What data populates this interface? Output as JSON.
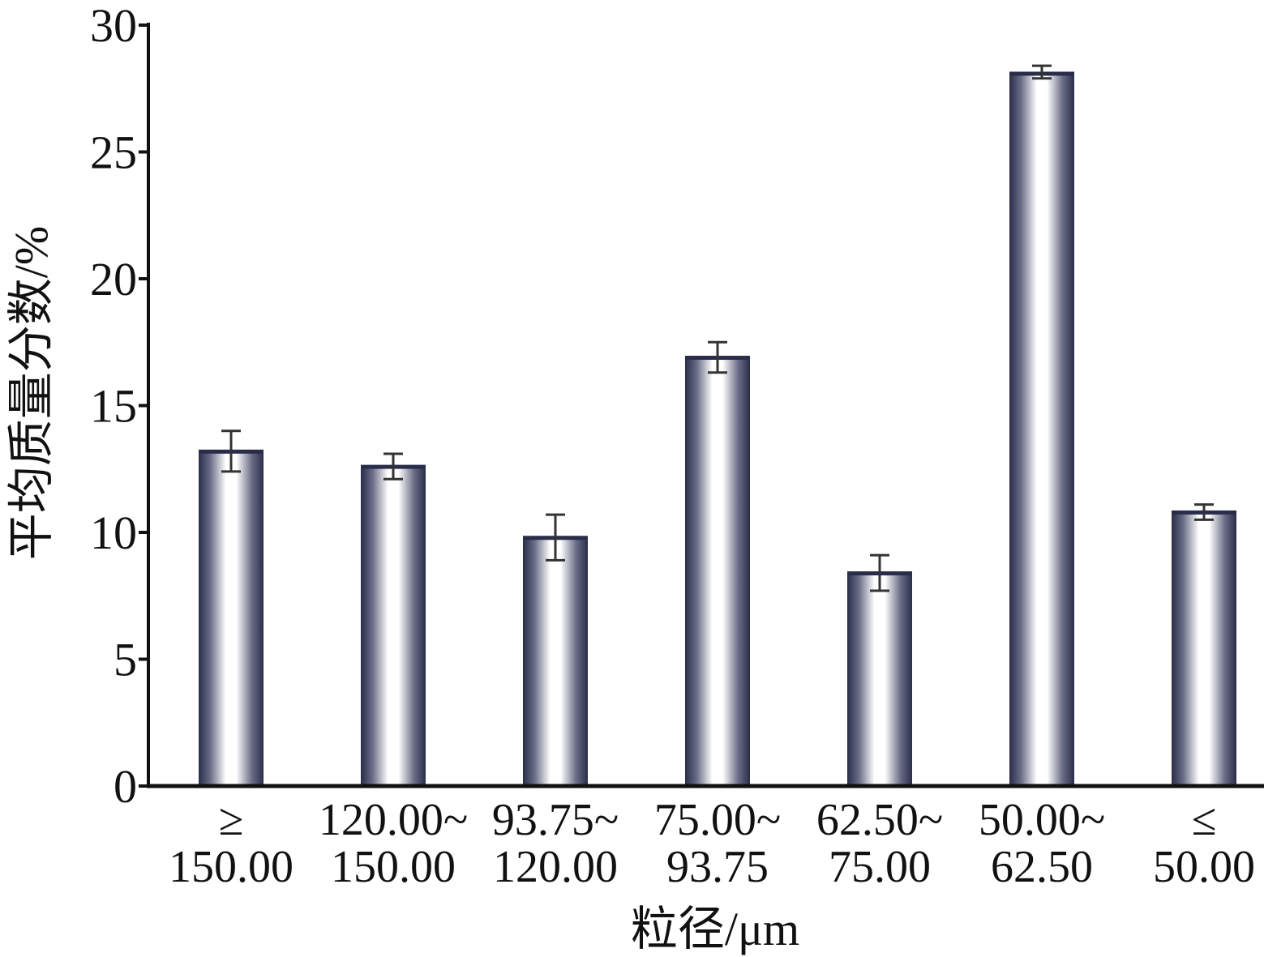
{
  "chart_data": {
    "type": "bar",
    "title": "",
    "xlabel": "粒径/μm",
    "ylabel": "平均质量分数/%",
    "ylim": [
      0,
      30
    ],
    "yticks": [
      0,
      5,
      10,
      15,
      20,
      25,
      30
    ],
    "grid": false,
    "categories": [
      [
        "≥",
        "150.00"
      ],
      [
        "120.00~",
        "150.00"
      ],
      [
        "93.75~",
        "120.00"
      ],
      [
        "75.00~",
        "93.75"
      ],
      [
        "62.50~",
        "75.00"
      ],
      [
        "50.00~",
        "62.50"
      ],
      [
        "≤",
        "50.00"
      ]
    ],
    "values": [
      13.2,
      12.6,
      9.8,
      16.9,
      8.4,
      28.1,
      10.8
    ],
    "errors": [
      [
        12.4,
        14.0
      ],
      [
        12.1,
        13.1
      ],
      [
        8.9,
        10.7
      ],
      [
        16.3,
        17.5
      ],
      [
        7.7,
        9.1
      ],
      [
        27.9,
        28.4
      ],
      [
        10.5,
        11.1
      ]
    ],
    "colors": {
      "bar_edge": "#2a2d4a",
      "bar_center": "#ffffff",
      "axis": "#111111",
      "error_bar": "#333333"
    }
  }
}
